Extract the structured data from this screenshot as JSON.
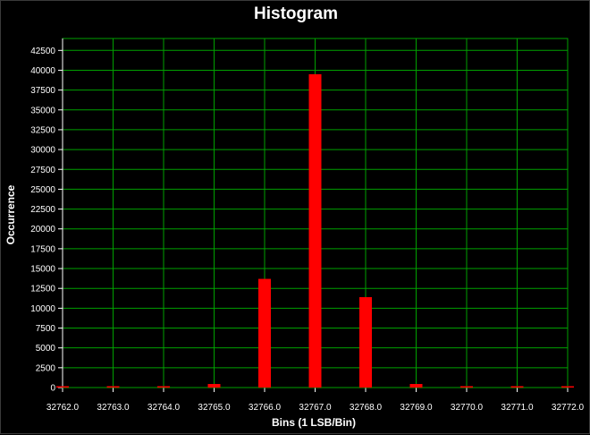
{
  "chart_data": {
    "type": "bar",
    "title": "Histogram",
    "xlabel": "Bins (1 LSB/Bin)",
    "ylabel": "Occurrence",
    "x": [
      32762.0,
      32763.0,
      32764.0,
      32765.0,
      32766.0,
      32767.0,
      32768.0,
      32769.0,
      32770.0,
      32771.0,
      32772.0
    ],
    "x_tick_labels": [
      "32762.0",
      "32763.0",
      "32764.0",
      "32765.0",
      "32766.0",
      "32767.0",
      "32768.0",
      "32769.0",
      "32770.0",
      "32771.0",
      "32772.0"
    ],
    "values": [
      0,
      0,
      0,
      450,
      13700,
      39500,
      11400,
      450,
      0,
      0,
      0
    ],
    "y_ticks": [
      0,
      2500,
      5000,
      7500,
      10000,
      12500,
      15000,
      17500,
      20000,
      22500,
      25000,
      27500,
      30000,
      32500,
      35000,
      37500,
      40000,
      42500
    ],
    "ylim": [
      0,
      44000
    ],
    "xlim": [
      32762.0,
      32772.0
    ],
    "grid": true,
    "colors": {
      "background": "#000000",
      "grid": "#00a000",
      "bar": "#ff0000",
      "text": "#ffffff"
    }
  }
}
